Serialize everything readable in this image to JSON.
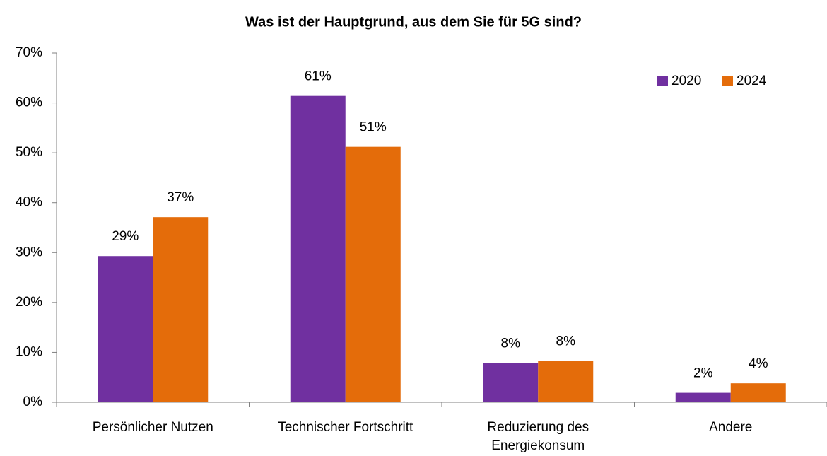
{
  "chart_data": {
    "type": "bar",
    "title": "Was ist der Hauptgrund, aus dem Sie für 5G sind?",
    "categories": [
      "Persönlicher Nutzen",
      "Technischer Fortschritt",
      "Reduzierung des Energiekonsum",
      "Andere"
    ],
    "series": [
      {
        "name": "2020",
        "color": "#7030a0",
        "values": [
          29.3,
          61.4,
          7.9,
          1.9
        ],
        "value_labels": [
          "29%",
          "61%",
          "8%",
          "2%"
        ]
      },
      {
        "name": "2024",
        "color": "#e46c0a",
        "values": [
          37.1,
          51.2,
          8.3,
          3.8
        ],
        "value_labels": [
          "37%",
          "51%",
          "8%",
          "4%"
        ]
      }
    ],
    "ylim": [
      0,
      70
    ],
    "yticks": [
      {
        "value": 0,
        "label": "0%"
      },
      {
        "value": 10,
        "label": "10%"
      },
      {
        "value": 20,
        "label": "20%"
      },
      {
        "value": 30,
        "label": "30%"
      },
      {
        "value": 40,
        "label": "40%"
      },
      {
        "value": 50,
        "label": "50%"
      },
      {
        "value": 60,
        "label": "60%"
      },
      {
        "value": 70,
        "label": "70%"
      }
    ],
    "grid": false,
    "legend": "upper right"
  }
}
